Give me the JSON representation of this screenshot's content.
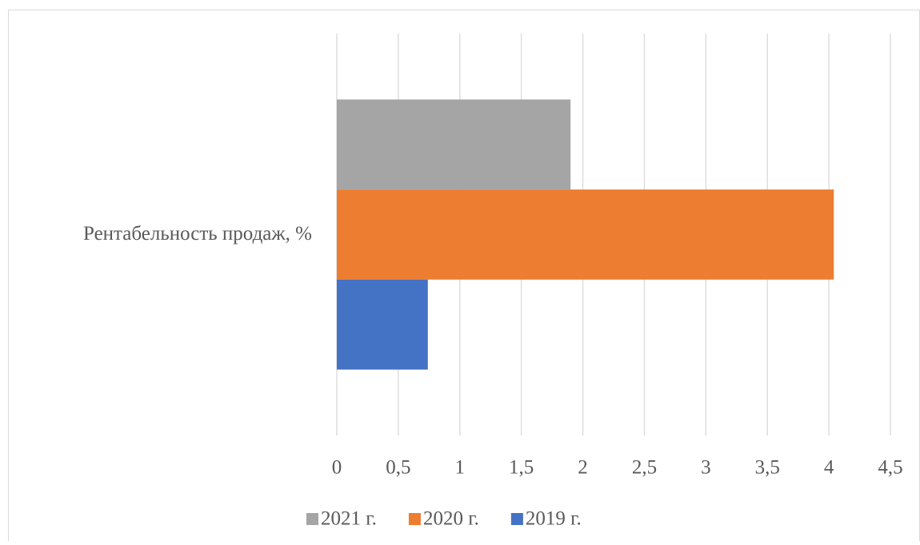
{
  "chart_data": {
    "type": "bar",
    "orientation": "horizontal",
    "categories": [
      "Рентабельность продаж, %"
    ],
    "series": [
      {
        "name": "2021 г.",
        "color": "#a5a5a5",
        "values": [
          1.9
        ]
      },
      {
        "name": "2020 г.",
        "color": "#ed7d31",
        "values": [
          4.04
        ]
      },
      {
        "name": "2019 г.",
        "color": "#4472c4",
        "values": [
          0.74
        ]
      }
    ],
    "xlim": [
      0,
      4.5
    ],
    "xticks": [
      0,
      {
        "value": 0.5,
        "label": "0,5"
      },
      1,
      {
        "value": 1.5,
        "label": "1,5"
      },
      2,
      {
        "value": 2.5,
        "label": "2,5"
      },
      3,
      {
        "value": 3.5,
        "label": "3,5"
      },
      4,
      {
        "value": 4.5,
        "label": "4,5"
      }
    ],
    "grid": true,
    "legend": "bottom"
  }
}
